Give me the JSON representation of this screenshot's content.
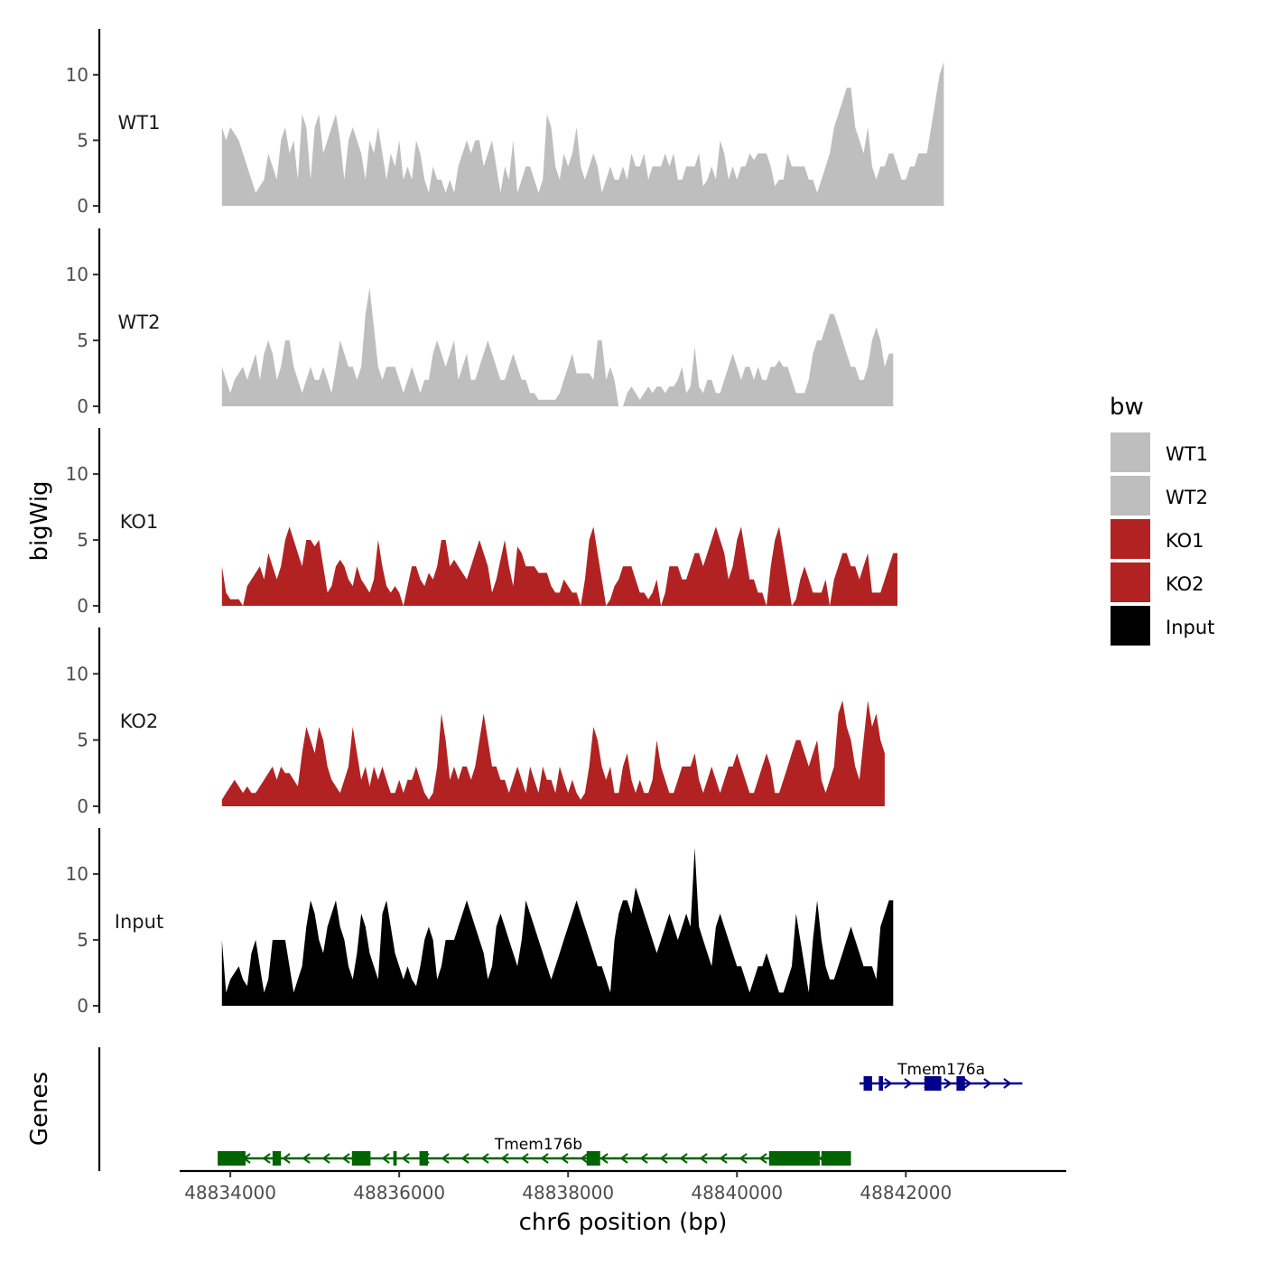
{
  "chart_data": {
    "type": "area",
    "xlabel": "chr6 position (bp)",
    "ylabel": "bigWig",
    "genes_label": "Genes",
    "xlim": [
      48833400,
      48843900
    ],
    "x_ticks": [
      48834000,
      48836000,
      48838000,
      48840000,
      48842000
    ],
    "x_tick_labels": [
      "48834000",
      "48836000",
      "48838000",
      "48840000",
      "48842000"
    ],
    "ylim": [
      0,
      13.5
    ],
    "y_ticks": [
      0,
      5,
      10
    ],
    "y_tick_labels": [
      "0",
      "5",
      "10"
    ],
    "legend": {
      "title": "bw",
      "entries": [
        {
          "name": "WT1",
          "color": "#bebebe"
        },
        {
          "name": "WT2",
          "color": "#bebebe"
        },
        {
          "name": "KO1",
          "color": "#b22222"
        },
        {
          "name": "KO2",
          "color": "#b22222"
        },
        {
          "name": "Input",
          "color": "#000000"
        }
      ]
    },
    "x_start": 48833900,
    "x_step": 50,
    "series": [
      {
        "name": "WT1",
        "color": "#bebebe",
        "values": [
          6,
          5,
          6,
          5.5,
          5,
          4,
          3,
          2,
          1,
          1.5,
          2,
          4,
          3,
          2,
          5,
          6,
          4,
          5,
          2,
          7,
          6,
          2,
          6,
          7,
          4,
          5,
          6,
          7,
          5,
          2,
          5,
          6,
          5,
          4,
          2,
          5,
          4,
          6,
          4,
          2,
          4,
          3,
          5,
          2,
          3,
          2,
          5,
          4,
          2,
          1,
          3,
          2,
          2,
          1,
          2,
          1,
          3,
          4,
          5,
          4,
          5,
          5,
          3,
          4,
          5,
          3,
          1,
          3,
          2,
          5,
          1,
          2,
          3,
          3,
          2,
          1,
          2,
          7,
          6,
          3,
          2,
          4,
          3,
          4,
          6,
          3,
          2,
          3,
          4,
          3,
          1,
          2,
          3,
          2,
          2,
          3,
          2,
          4,
          3,
          3,
          4,
          2,
          3,
          3,
          3,
          4,
          3,
          4,
          2,
          2,
          3,
          3,
          3,
          4,
          1.5,
          2,
          3,
          2,
          5,
          4,
          2,
          3,
          2,
          3,
          3,
          4,
          3.5,
          4,
          4,
          4,
          3,
          1.5,
          2,
          2,
          4,
          3,
          3,
          3,
          3,
          2,
          2,
          1,
          2,
          3,
          4,
          6,
          7,
          8,
          9,
          9,
          6,
          5,
          4,
          6,
          3,
          2,
          3,
          3,
          4,
          4,
          3,
          2,
          2,
          3,
          3,
          4,
          4,
          4,
          6,
          8,
          10,
          11
        ]
      },
      {
        "name": "WT2",
        "color": "#bebebe",
        "values": [
          3,
          2,
          1,
          2,
          2.5,
          3,
          2,
          3,
          4,
          2,
          4,
          5,
          4,
          2,
          3,
          5,
          5,
          3,
          2,
          1,
          2,
          3,
          2,
          2,
          3,
          2,
          1,
          3,
          5,
          4,
          3,
          3,
          2,
          3,
          7,
          9,
          6,
          3,
          2,
          3,
          3,
          3,
          2,
          1,
          2,
          3,
          2,
          1,
          2,
          2,
          4,
          5,
          4,
          3,
          4,
          5,
          2,
          3,
          4,
          2,
          2,
          3,
          4,
          5,
          4,
          3,
          2,
          2,
          3,
          4,
          3,
          2,
          2,
          1,
          1,
          0.5,
          0.5,
          0.5,
          0.5,
          0.5,
          1,
          2,
          3,
          4,
          2.5,
          2.5,
          2.5,
          2.5,
          2,
          5,
          5,
          2,
          3,
          2,
          0,
          0,
          1,
          1.5,
          1,
          0.5,
          1,
          1.5,
          1,
          1.5,
          1.5,
          1,
          1.5,
          1.5,
          2,
          3,
          1,
          1.5,
          4.5,
          1.5,
          1,
          2,
          2,
          1,
          1,
          2,
          3,
          4,
          3,
          2,
          3,
          3,
          2,
          3,
          2,
          2,
          3,
          3,
          3.5,
          3,
          3,
          2,
          1,
          1,
          1,
          2,
          4,
          5,
          5,
          6,
          7,
          7,
          6,
          5,
          4,
          3,
          3,
          2,
          2,
          3,
          5,
          6,
          5,
          3,
          4,
          4
        ]
      },
      {
        "name": "KO1",
        "color": "#b22222",
        "values": [
          3,
          1,
          0.5,
          0.5,
          0.5,
          0,
          1.5,
          2,
          2.5,
          3,
          2,
          4,
          3,
          2,
          3,
          5,
          6,
          5,
          4,
          3,
          5,
          5,
          4.5,
          5,
          3,
          1,
          1.5,
          3,
          3.5,
          3,
          2,
          1.5,
          3,
          2,
          1.5,
          1,
          2,
          5,
          3,
          1.5,
          1,
          1.5,
          1,
          0,
          1.5,
          3,
          3,
          2,
          1.5,
          2.5,
          2,
          3,
          5,
          5,
          3,
          3.5,
          3,
          2.5,
          2,
          3,
          4,
          5,
          4,
          3,
          1,
          2,
          3.5,
          5,
          3,
          1.5,
          4.5,
          4,
          3,
          3,
          3,
          2.5,
          2.5,
          2.5,
          1.5,
          1,
          1,
          2,
          1.5,
          1,
          1,
          0,
          2,
          5,
          6,
          4,
          2,
          0,
          0.5,
          1.5,
          2,
          3,
          3,
          3,
          2,
          1,
          1,
          0.5,
          1,
          2,
          0,
          1,
          3,
          3,
          3,
          2,
          2,
          3,
          4,
          4,
          3,
          4,
          5,
          6,
          5,
          4,
          2,
          3,
          5,
          6,
          4,
          2,
          2,
          1,
          1,
          0,
          3,
          5,
          6,
          4,
          2,
          0,
          0.5,
          2,
          3,
          2,
          1,
          1,
          1,
          2,
          0,
          2,
          3,
          4,
          4,
          3,
          3,
          2,
          3,
          4,
          1,
          1,
          1,
          2,
          3,
          4,
          4
        ]
      },
      {
        "name": "KO2",
        "color": "#b22222",
        "values": [
          0.5,
          1,
          1.5,
          2,
          1.5,
          1,
          1.5,
          1,
          1,
          1.5,
          2,
          2.5,
          3,
          2,
          3,
          2.5,
          2.5,
          2,
          1.5,
          4,
          6,
          5,
          4,
          6,
          5,
          3,
          2,
          1.5,
          1,
          2,
          3,
          6,
          4,
          2,
          3,
          1.5,
          3,
          2,
          3,
          2,
          1,
          1,
          2,
          1,
          2,
          2,
          3,
          2,
          1,
          0.5,
          1,
          3,
          7,
          5,
          2,
          3,
          2,
          3,
          3,
          2,
          3,
          5,
          7,
          5,
          3,
          3,
          2,
          2,
          1,
          2,
          3,
          2,
          1,
          3,
          2,
          1,
          3,
          2,
          2,
          1,
          3,
          2,
          1,
          2,
          1,
          0.5,
          1,
          3,
          6,
          5,
          3,
          2,
          3,
          1,
          1,
          3,
          4,
          2,
          1,
          2,
          1,
          1,
          2,
          5,
          3,
          2,
          1,
          1,
          2,
          3,
          3,
          3,
          4,
          2,
          1,
          2,
          3,
          2,
          1,
          2,
          3,
          3,
          4,
          3,
          2,
          1,
          1,
          2,
          3,
          4,
          3,
          1,
          1,
          2,
          3,
          4,
          5,
          5,
          4,
          3,
          4,
          5,
          2,
          1,
          2,
          3,
          7,
          8,
          6,
          5,
          3,
          2,
          5,
          8,
          6,
          7,
          5,
          4
        ]
      },
      {
        "name": "Input",
        "color": "#000000",
        "values": [
          5,
          1,
          2,
          2.5,
          3,
          2,
          1.5,
          4,
          5,
          3,
          1,
          2,
          5,
          5,
          5,
          5,
          3,
          1,
          2,
          3,
          6,
          8,
          7,
          5,
          4,
          6,
          7,
          8,
          6,
          5,
          3,
          2,
          4,
          7,
          6,
          4,
          3,
          2,
          7,
          8,
          6,
          4,
          3,
          2,
          3,
          2,
          1.5,
          3,
          5,
          6,
          5,
          2,
          3,
          5,
          5,
          5,
          6,
          7,
          8,
          7,
          6,
          5,
          4,
          2,
          3,
          6,
          7,
          6,
          5,
          4,
          3,
          5,
          8,
          7,
          6,
          5,
          4,
          3,
          2,
          3,
          4,
          5,
          6,
          7,
          8,
          7,
          6,
          5,
          4,
          3,
          3,
          2,
          1,
          5,
          7,
          8,
          8,
          7,
          9,
          8,
          7,
          6,
          5,
          4,
          5,
          6,
          7,
          6,
          5,
          6,
          7,
          6,
          12,
          6,
          5,
          4,
          3,
          6,
          7,
          6,
          5,
          4,
          3,
          3,
          2,
          1,
          2,
          3,
          3,
          4,
          3,
          2,
          1,
          1,
          2,
          3,
          7,
          5,
          3,
          1,
          5,
          8,
          5,
          3,
          2,
          2,
          3,
          4,
          5,
          6,
          5,
          4,
          3,
          3,
          3,
          2,
          6,
          7,
          8,
          8
        ]
      }
    ],
    "genes": [
      {
        "name": "Tmem176b",
        "strand": "-",
        "color": "#006400",
        "start": 48833850,
        "end": 48841350,
        "label_x": 48837650,
        "exons": [
          [
            48833850,
            48834180
          ],
          [
            48834500,
            48834600
          ],
          [
            48835440,
            48835660
          ],
          [
            48835930,
            48835970
          ],
          [
            48836240,
            48836340
          ],
          [
            48838220,
            48838380
          ],
          [
            48840380,
            48840980
          ],
          [
            48841000,
            48841350
          ]
        ]
      },
      {
        "name": "Tmem176a",
        "strand": "+",
        "color": "#00008b",
        "start": 48841450,
        "end": 48843380,
        "label_x": 48842420,
        "exons": [
          [
            48841500,
            48841600
          ],
          [
            48841680,
            48841730
          ],
          [
            48842220,
            48842420
          ],
          [
            48842600,
            48842700
          ]
        ]
      }
    ]
  }
}
